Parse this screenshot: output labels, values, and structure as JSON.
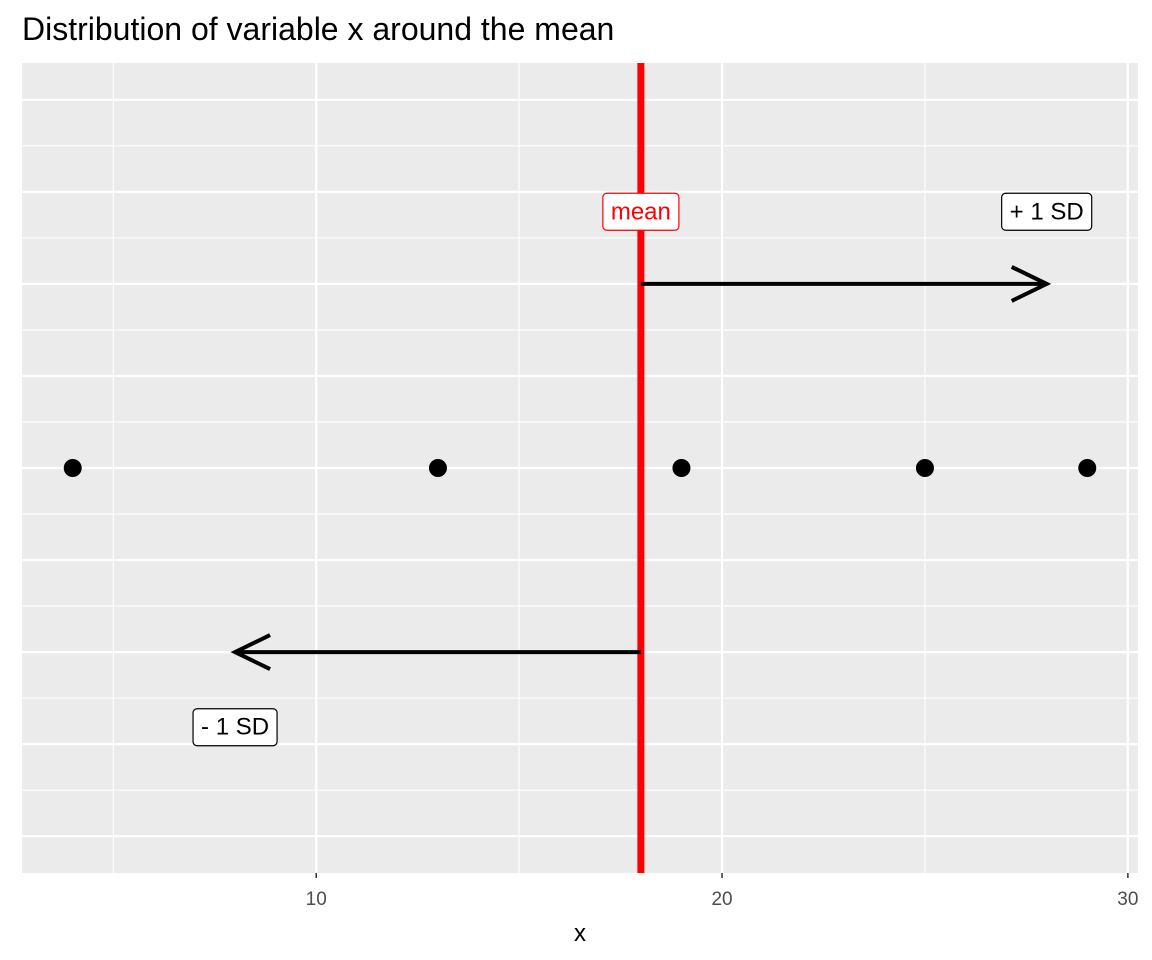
{
  "chart_data": {
    "type": "scatter",
    "title": "Distribution of variable x around the mean",
    "xlabel": "x",
    "ylabel": "",
    "xlim": [
      2.75,
      30.25
    ],
    "ylim": [
      0.56,
      1.44
    ],
    "x_ticks": [
      10,
      20,
      30
    ],
    "x_tick_labels": [
      "10",
      "20",
      "30"
    ],
    "grid": true,
    "y_axis_labels_shown": false,
    "points": [
      {
        "x": 4,
        "y": 1
      },
      {
        "x": 13,
        "y": 1
      },
      {
        "x": 19,
        "y": 1
      },
      {
        "x": 25,
        "y": 1
      },
      {
        "x": 29,
        "y": 1
      }
    ],
    "mean": 18,
    "sd": 10,
    "annotations": {
      "mean_label": {
        "text": "mean",
        "x": 18,
        "y": 1.28,
        "color": "#ff0000"
      },
      "plus_sd_label": {
        "text": "+ 1 SD",
        "x": 28,
        "y": 1.28,
        "color": "#000000"
      },
      "minus_sd_label": {
        "text": "- 1 SD",
        "x": 8,
        "y": 0.72,
        "color": "#000000"
      }
    },
    "arrows": [
      {
        "name": "plus-sd-arrow",
        "from_x": 18,
        "to_x": 28,
        "y": 1.2
      },
      {
        "name": "minus-sd-arrow",
        "from_x": 18,
        "to_x": 8,
        "y": 0.8
      }
    ],
    "colors": {
      "panel": "#ebebeb",
      "grid": "#ffffff",
      "mean_line": "#ff0000",
      "points": "#000000"
    }
  }
}
